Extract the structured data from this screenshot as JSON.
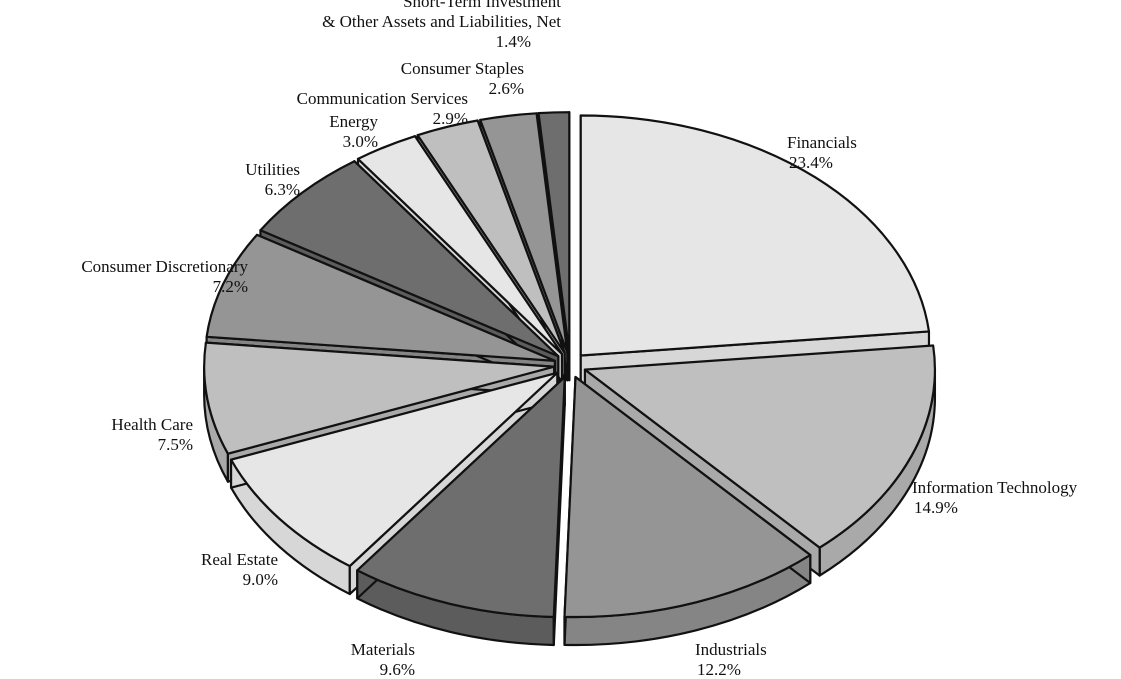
{
  "chart_data": {
    "type": "pie",
    "style": "3d-exploded",
    "start_angle_deg": 0,
    "direction": "clockwise",
    "slices": [
      {
        "name": "Financials",
        "value": 23.4,
        "pct_label": "23.4%",
        "color": "#e6e6e6",
        "side_color": "#d7d7d7"
      },
      {
        "name": "Information Technology",
        "value": 14.9,
        "pct_label": "14.9%",
        "color": "#bfbfbf",
        "side_color": "#a9a9a9"
      },
      {
        "name": "Industrials",
        "value": 12.2,
        "pct_label": "12.2%",
        "color": "#959595",
        "side_color": "#858585"
      },
      {
        "name": "Materials",
        "value": 9.6,
        "pct_label": "9.6%",
        "color": "#6e6e6e",
        "side_color": "#5c5c5c"
      },
      {
        "name": "Real Estate",
        "value": 9.0,
        "pct_label": "9.0%",
        "color": "#e6e6e6",
        "side_color": "#d7d7d7"
      },
      {
        "name": "Health Care",
        "value": 7.5,
        "pct_label": "7.5%",
        "color": "#bfbfbf",
        "side_color": "#a9a9a9"
      },
      {
        "name": "Consumer Discretionary",
        "value": 7.2,
        "pct_label": "7.2%",
        "color": "#959595",
        "side_color": "#858585"
      },
      {
        "name": "Utilities",
        "value": 6.3,
        "pct_label": "6.3%",
        "color": "#6e6e6e",
        "side_color": "#5c5c5c"
      },
      {
        "name": "Energy",
        "value": 3.0,
        "pct_label": "3.0%",
        "color": "#e6e6e6",
        "side_color": "#d7d7d7"
      },
      {
        "name": "Communication Services",
        "value": 2.9,
        "pct_label": "2.9%",
        "color": "#bfbfbf",
        "side_color": "#a9a9a9"
      },
      {
        "name": "Consumer Staples",
        "value": 2.6,
        "pct_label": "2.6%",
        "color": "#959595",
        "side_color": "#858585"
      },
      {
        "name": "Short-Term Investment & Other Assets and Liabilities, Net",
        "label_lines": [
          "Short-Term Investment",
          "& Other Assets and Liabilities, Net"
        ],
        "value": 1.4,
        "pct_label": "1.4%",
        "color": "#6e6e6e",
        "side_color": "#5c5c5c"
      }
    ]
  }
}
